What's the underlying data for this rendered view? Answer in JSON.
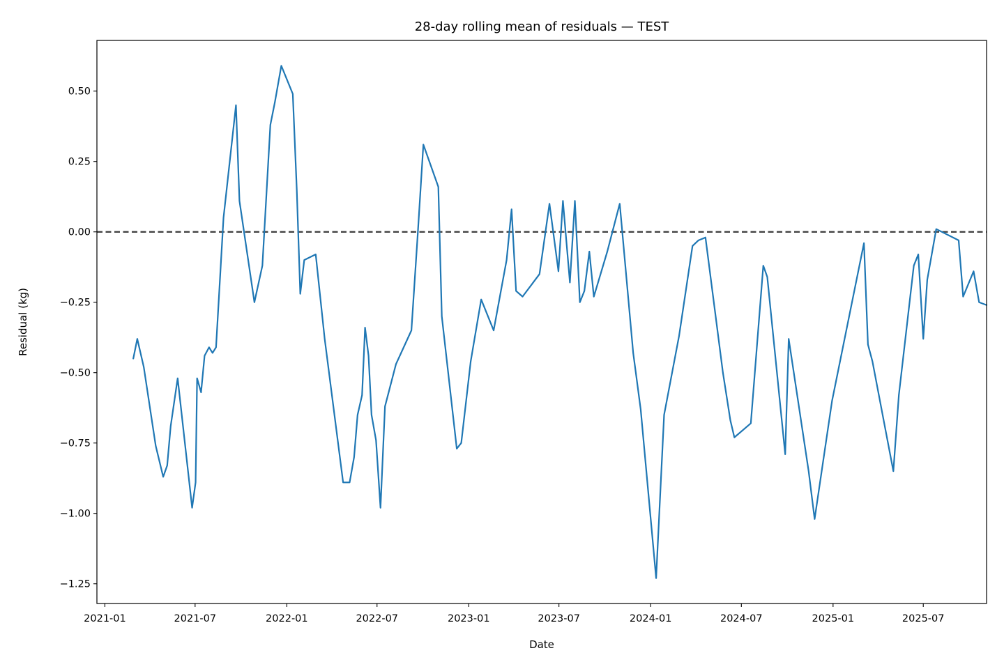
{
  "chart_data": {
    "type": "line",
    "title": "28-day rolling mean of residuals — TEST",
    "xlabel": "Date",
    "ylabel": "Residual (kg)",
    "x_tick_labels": [
      "2021-01",
      "2021-07",
      "2022-01",
      "2022-07",
      "2023-01",
      "2023-07",
      "2024-01",
      "2024-07",
      "2025-01",
      "2025-07"
    ],
    "y_tick_labels": [
      "−1.25",
      "−1.00",
      "−0.75",
      "−0.50",
      "−0.25",
      "0.00",
      "0.25",
      "0.50"
    ],
    "y_ticks": [
      -1.25,
      -1.0,
      -0.75,
      -0.5,
      -0.25,
      0.0,
      0.25,
      0.5
    ],
    "xlim": [
      "2020-12-16",
      "2025-11-05"
    ],
    "ylim": [
      -1.32,
      0.68
    ],
    "grid": false,
    "legend": "none",
    "reference_line": {
      "y": 0.0,
      "style": "dashed",
      "color": "#3a3a3a"
    },
    "series": [
      {
        "color": "#1f77b4",
        "points": [
          [
            "2021-02-27",
            -0.45
          ],
          [
            "2021-03-07",
            -0.38
          ],
          [
            "2021-03-20",
            -0.48
          ],
          [
            "2021-04-13",
            -0.76
          ],
          [
            "2021-04-28",
            -0.87
          ],
          [
            "2021-05-06",
            -0.83
          ],
          [
            "2021-05-13",
            -0.69
          ],
          [
            "2021-05-27",
            -0.52
          ],
          [
            "2021-06-25",
            -0.98
          ],
          [
            "2021-07-02",
            -0.89
          ],
          [
            "2021-07-05",
            -0.52
          ],
          [
            "2021-07-13",
            -0.57
          ],
          [
            "2021-07-20",
            -0.44
          ],
          [
            "2021-07-29",
            -0.41
          ],
          [
            "2021-08-05",
            -0.43
          ],
          [
            "2021-08-12",
            -0.41
          ],
          [
            "2021-08-27",
            0.05
          ],
          [
            "2021-09-21",
            0.45
          ],
          [
            "2021-09-28",
            0.11
          ],
          [
            "2021-10-28",
            -0.25
          ],
          [
            "2021-11-13",
            -0.12
          ],
          [
            "2021-11-29",
            0.38
          ],
          [
            "2021-12-08",
            0.46
          ],
          [
            "2021-12-21",
            0.59
          ],
          [
            "2022-01-13",
            0.49
          ],
          [
            "2022-01-21",
            0.15
          ],
          [
            "2022-01-28",
            -0.22
          ],
          [
            "2022-02-05",
            -0.1
          ],
          [
            "2022-02-28",
            -0.08
          ],
          [
            "2022-03-18",
            -0.38
          ],
          [
            "2022-04-24",
            -0.89
          ],
          [
            "2022-05-07",
            -0.89
          ],
          [
            "2022-05-16",
            -0.8
          ],
          [
            "2022-05-23",
            -0.65
          ],
          [
            "2022-06-01",
            -0.58
          ],
          [
            "2022-06-07",
            -0.34
          ],
          [
            "2022-06-14",
            -0.44
          ],
          [
            "2022-06-20",
            -0.65
          ],
          [
            "2022-06-29",
            -0.74
          ],
          [
            "2022-07-08",
            -0.98
          ],
          [
            "2022-07-17",
            -0.62
          ],
          [
            "2022-08-08",
            -0.47
          ],
          [
            "2022-09-08",
            -0.35
          ],
          [
            "2022-09-21",
            0.0
          ],
          [
            "2022-10-02",
            0.31
          ],
          [
            "2022-11-01",
            0.16
          ],
          [
            "2022-11-08",
            -0.3
          ],
          [
            "2022-12-08",
            -0.77
          ],
          [
            "2022-12-17",
            -0.75
          ],
          [
            "2023-01-05",
            -0.46
          ],
          [
            "2023-01-26",
            -0.24
          ],
          [
            "2023-02-20",
            -0.35
          ],
          [
            "2023-03-18",
            -0.1
          ],
          [
            "2023-03-28",
            0.08
          ],
          [
            "2023-04-06",
            -0.21
          ],
          [
            "2023-04-19",
            -0.23
          ],
          [
            "2023-05-23",
            -0.15
          ],
          [
            "2023-06-12",
            0.1
          ],
          [
            "2023-06-30",
            -0.14
          ],
          [
            "2023-07-09",
            0.11
          ],
          [
            "2023-07-23",
            -0.18
          ],
          [
            "2023-08-02",
            0.11
          ],
          [
            "2023-08-12",
            -0.25
          ],
          [
            "2023-08-21",
            -0.21
          ],
          [
            "2023-08-31",
            -0.07
          ],
          [
            "2023-09-09",
            -0.23
          ],
          [
            "2023-10-06",
            -0.07
          ],
          [
            "2023-10-31",
            0.1
          ],
          [
            "2023-11-27",
            -0.43
          ],
          [
            "2023-12-12",
            -0.63
          ],
          [
            "2024-01-12",
            -1.23
          ],
          [
            "2024-01-28",
            -0.65
          ],
          [
            "2024-02-27",
            -0.37
          ],
          [
            "2024-03-25",
            -0.05
          ],
          [
            "2024-04-06",
            -0.03
          ],
          [
            "2024-04-20",
            -0.02
          ],
          [
            "2024-05-25",
            -0.5
          ],
          [
            "2024-06-09",
            -0.67
          ],
          [
            "2024-06-17",
            -0.73
          ],
          [
            "2024-07-20",
            -0.68
          ],
          [
            "2024-08-14",
            -0.12
          ],
          [
            "2024-08-22",
            -0.16
          ],
          [
            "2024-09-27",
            -0.79
          ],
          [
            "2024-10-04",
            -0.38
          ],
          [
            "2024-11-13",
            -0.85
          ],
          [
            "2024-11-25",
            -1.02
          ],
          [
            "2024-12-30",
            -0.6
          ],
          [
            "2025-03-04",
            -0.04
          ],
          [
            "2025-03-12",
            -0.4
          ],
          [
            "2025-03-21",
            -0.46
          ],
          [
            "2025-05-02",
            -0.85
          ],
          [
            "2025-05-13",
            -0.58
          ],
          [
            "2025-06-12",
            -0.12
          ],
          [
            "2025-06-21",
            -0.08
          ],
          [
            "2025-07-01",
            -0.38
          ],
          [
            "2025-07-09",
            -0.17
          ],
          [
            "2025-07-27",
            0.01
          ],
          [
            "2025-09-10",
            -0.03
          ],
          [
            "2025-09-19",
            -0.23
          ],
          [
            "2025-10-10",
            -0.14
          ],
          [
            "2025-10-21",
            -0.25
          ],
          [
            "2025-11-05",
            -0.26
          ]
        ]
      }
    ]
  }
}
